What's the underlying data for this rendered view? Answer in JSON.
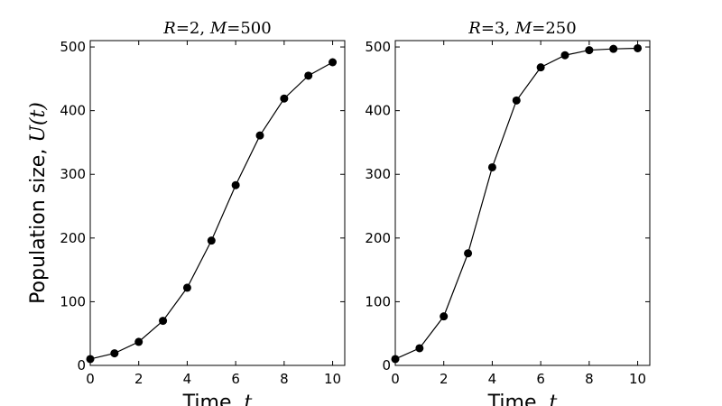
{
  "ylabel_text": "Population size, ",
  "ylabel_math": "U(t)",
  "xlabel_text": "Time, ",
  "xlabel_math": "t",
  "chart_data": [
    {
      "type": "line",
      "title": "R=2, M=500",
      "xlabel": "Time, t",
      "ylabel": "Population size, U(t)",
      "xlim": [
        0,
        10.5
      ],
      "ylim": [
        0,
        510
      ],
      "xticks": [
        0,
        2,
        4,
        6,
        8,
        10
      ],
      "yticks": [
        0,
        100,
        200,
        300,
        400,
        500
      ],
      "grid": false,
      "marker": "circle",
      "color": "#000000",
      "x": [
        0,
        1,
        2,
        3,
        4,
        5,
        6,
        7,
        8,
        9,
        10
      ],
      "y": [
        10,
        19,
        37,
        70,
        122,
        196,
        283,
        361,
        419,
        455,
        476
      ]
    },
    {
      "type": "line",
      "title": "R=3, M=250",
      "xlabel": "Time, t",
      "ylabel": "",
      "xlim": [
        0,
        10.5
      ],
      "ylim": [
        0,
        510
      ],
      "xticks": [
        0,
        2,
        4,
        6,
        8,
        10
      ],
      "yticks": [
        0,
        100,
        200,
        300,
        400,
        500
      ],
      "grid": false,
      "marker": "circle",
      "color": "#000000",
      "x": [
        0,
        1,
        2,
        3,
        4,
        5,
        6,
        7,
        8,
        9,
        10
      ],
      "y": [
        10,
        27,
        77,
        176,
        311,
        416,
        468,
        487,
        495,
        497,
        498
      ]
    }
  ]
}
